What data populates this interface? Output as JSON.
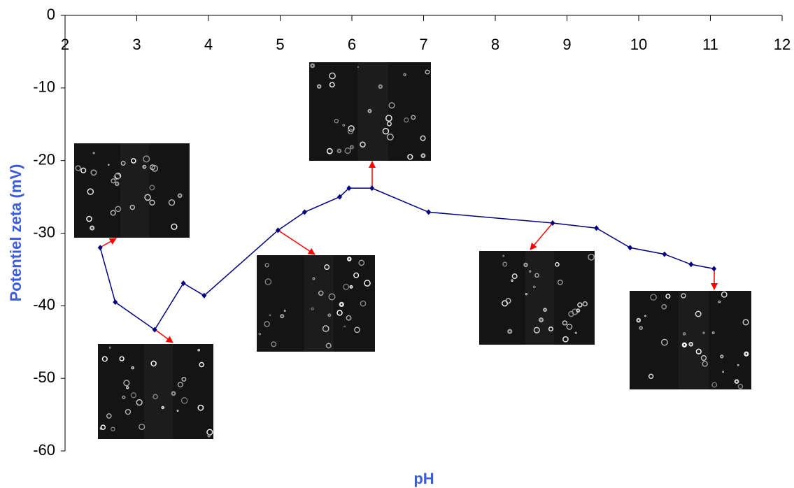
{
  "chart_data": {
    "type": "line",
    "x_label": "pH",
    "y_label": "Potentiel zeta (mV)",
    "x": [
      2.49,
      2.7,
      3.25,
      3.65,
      3.94,
      4.97,
      5.34,
      5.83,
      5.96,
      6.28,
      7.07,
      8.8,
      9.41,
      9.88,
      10.36,
      10.73,
      11.05
    ],
    "series": [
      {
        "color": "#000080",
        "values": [
          -32.0,
          -39.5,
          -43.3,
          -36.9,
          -38.6,
          -29.6,
          -27.1,
          -25.0,
          -23.8,
          -23.8,
          -27.1,
          -28.6,
          -29.3,
          -32.0,
          -32.9,
          -34.3,
          -34.9
        ]
      }
    ],
    "xlim": [
      2,
      12
    ],
    "xticks": [
      2,
      3,
      4,
      5,
      6,
      7,
      8,
      9,
      10,
      11,
      12
    ],
    "ylim": [
      -60,
      0
    ],
    "yticks": [
      0,
      -10,
      -20,
      -30,
      -40,
      -50,
      -60
    ]
  }
}
